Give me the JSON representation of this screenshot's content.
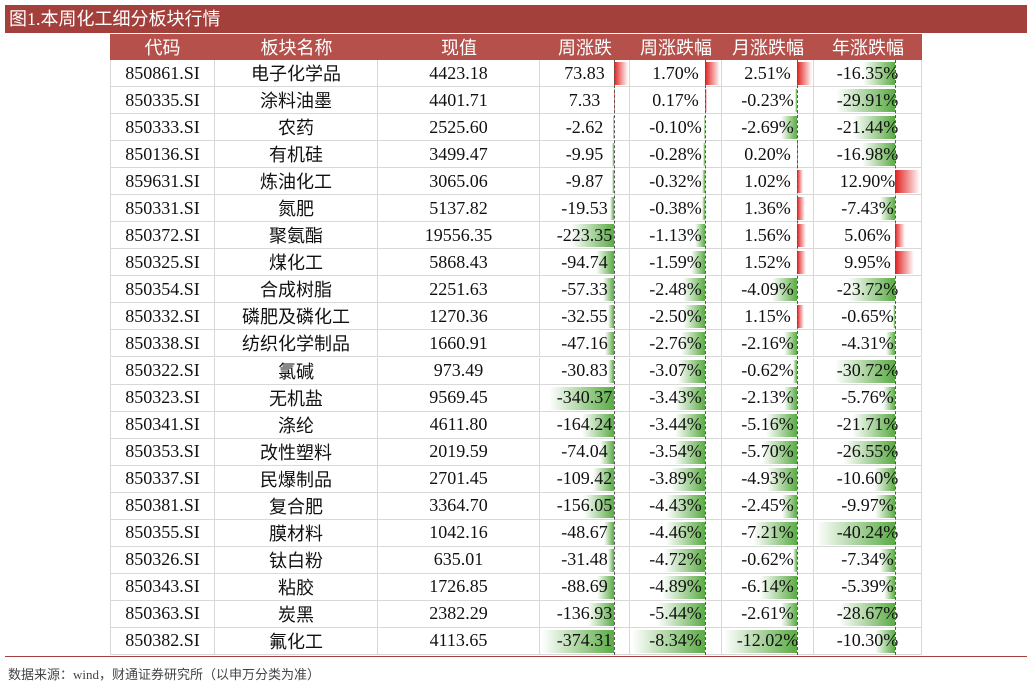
{
  "title": "图1.本周化工细分板块行情",
  "table": {
    "header": [
      "代码",
      "板块名称",
      "现值",
      "周涨跌",
      "周涨跌幅",
      "月涨跌幅",
      "年涨跌幅"
    ],
    "rows": [
      [
        "850861.SI",
        "电子化学品",
        "4423.18",
        "73.83",
        "1.70%",
        "2.51%",
        "-16.35%"
      ],
      [
        "850335.SI",
        "涂料油墨",
        "4401.71",
        "7.33",
        "0.17%",
        "-0.23%",
        "-29.91%"
      ],
      [
        "850333.SI",
        "农药",
        "2525.60",
        "-2.62",
        "-0.10%",
        "-2.69%",
        "-21.44%"
      ],
      [
        "850136.SI",
        "有机硅",
        "3499.47",
        "-9.95",
        "-0.28%",
        "0.20%",
        "-16.98%"
      ],
      [
        "859631.SI",
        "炼油化工",
        "3065.06",
        "-9.87",
        "-0.32%",
        "1.02%",
        "12.90%"
      ],
      [
        "850331.SI",
        "氮肥",
        "5137.82",
        "-19.53",
        "-0.38%",
        "1.36%",
        "-7.43%"
      ],
      [
        "850372.SI",
        "聚氨酯",
        "19556.35",
        "-223.35",
        "-1.13%",
        "1.56%",
        "5.06%"
      ],
      [
        "850325.SI",
        "煤化工",
        "5868.43",
        "-94.74",
        "-1.59%",
        "1.52%",
        "9.95%"
      ],
      [
        "850354.SI",
        "合成树脂",
        "2251.63",
        "-57.33",
        "-2.48%",
        "-4.09%",
        "-23.72%"
      ],
      [
        "850332.SI",
        "磷肥及磷化工",
        "1270.36",
        "-32.55",
        "-2.50%",
        "1.15%",
        "-0.65%"
      ],
      [
        "850338.SI",
        "纺织化学制品",
        "1660.91",
        "-47.16",
        "-2.76%",
        "-2.16%",
        "-4.31%"
      ],
      [
        "850322.SI",
        "氯碱",
        "973.49",
        "-30.83",
        "-3.07%",
        "-0.62%",
        "-30.72%"
      ],
      [
        "850323.SI",
        "无机盐",
        "9569.45",
        "-340.37",
        "-3.43%",
        "-2.13%",
        "-5.76%"
      ],
      [
        "850341.SI",
        "涤纶",
        "4611.80",
        "-164.24",
        "-3.44%",
        "-5.16%",
        "-21.71%"
      ],
      [
        "850353.SI",
        "改性塑料",
        "2019.59",
        "-74.04",
        "-3.54%",
        "-5.70%",
        "-26.55%"
      ],
      [
        "850337.SI",
        "民爆制品",
        "2701.45",
        "-109.42",
        "-3.89%",
        "-4.93%",
        "-10.60%"
      ],
      [
        "850381.SI",
        "复合肥",
        "3364.70",
        "-156.05",
        "-4.43%",
        "-2.45%",
        "-9.97%"
      ],
      [
        "850355.SI",
        "膜材料",
        "1042.16",
        "-48.67",
        "-4.46%",
        "-7.21%",
        "-40.24%"
      ],
      [
        "850326.SI",
        "钛白粉",
        "635.01",
        "-31.48",
        "-4.72%",
        "-0.62%",
        "-7.34%"
      ],
      [
        "850343.SI",
        "粘胶",
        "1726.85",
        "-88.69",
        "-4.89%",
        "-6.14%",
        "-5.39%"
      ],
      [
        "850363.SI",
        "炭黑",
        "2382.29",
        "-136.93",
        "-5.44%",
        "-2.61%",
        "-28.67%"
      ],
      [
        "850382.SI",
        "氟化工",
        "4113.65",
        "-374.31",
        "-8.34%",
        "-12.02%",
        "-10.30%"
      ]
    ]
  },
  "source": "数据来源：wind，财通证券研究所（以申万分类为准）"
}
